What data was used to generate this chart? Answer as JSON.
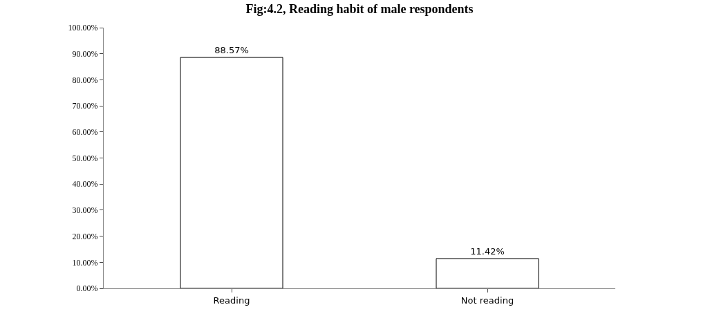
{
  "chart_data": {
    "type": "bar",
    "title": "Fig:4.2, Reading habit of male respondents",
    "categories": [
      "Reading",
      "Not reading"
    ],
    "values": [
      88.57,
      11.42
    ],
    "value_labels": [
      "88.57%",
      "11.42%"
    ],
    "color": "#ffffff",
    "ylim": [
      0,
      100
    ],
    "yticks": [
      {
        "value": 0,
        "label": "0.00%"
      },
      {
        "value": 10,
        "label": "10.00%"
      },
      {
        "value": 20,
        "label": "20.00%"
      },
      {
        "value": 30,
        "label": "30.00%"
      },
      {
        "value": 40,
        "label": "40.00%"
      },
      {
        "value": 50,
        "label": "50.00%"
      },
      {
        "value": 60,
        "label": "60.00%"
      },
      {
        "value": 70,
        "label": "70.00%"
      },
      {
        "value": 80,
        "label": "80.00%"
      },
      {
        "value": 90,
        "label": "90.00%"
      },
      {
        "value": 100,
        "label": "100.00%"
      }
    ],
    "grid": false,
    "legend": false
  }
}
